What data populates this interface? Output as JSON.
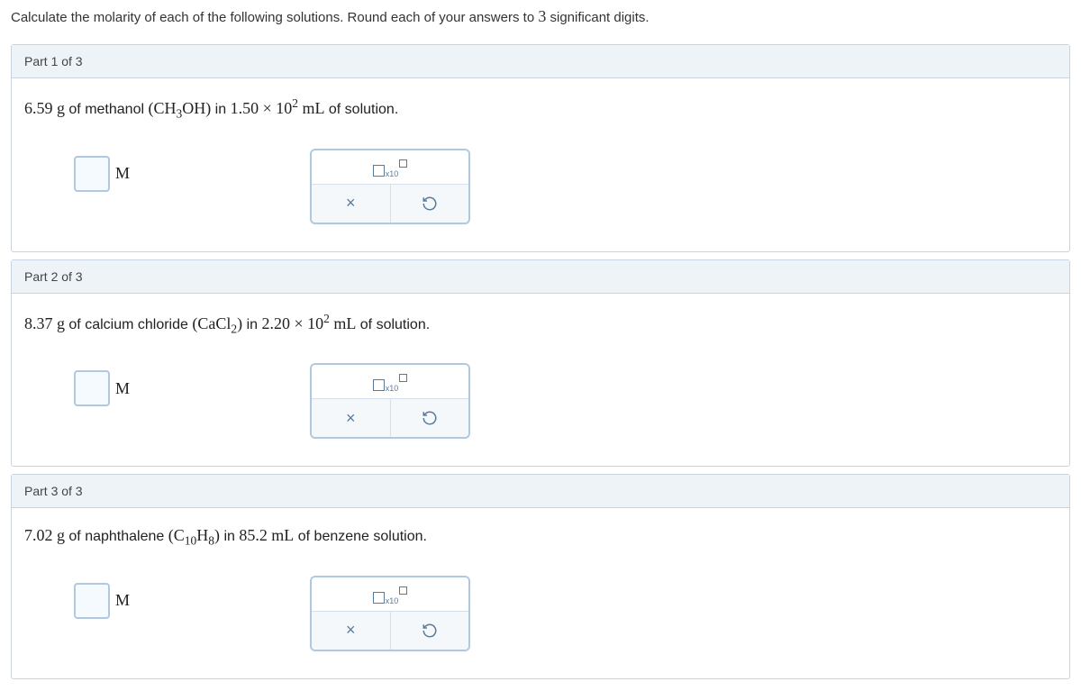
{
  "instructions": {
    "text_before": "Calculate the molarity of each of the following solutions. Round each of your answers to ",
    "sig_digits": "3",
    "text_after": " significant digits."
  },
  "parts": [
    {
      "header": "Part 1 of 3",
      "mass": "6.59",
      "mass_unit": "g",
      "substance_name": "of methanol",
      "formula_html": "(CH<sub>3</sub>OH)",
      "connector": "in",
      "volume_html": "1.50 × 10<sup>2</sup>",
      "volume_unit": "mL",
      "solution_text": "of solution.",
      "unit": "M"
    },
    {
      "header": "Part 2 of 3",
      "mass": "8.37",
      "mass_unit": "g",
      "substance_name": "of calcium chloride",
      "formula_html": "(CaCl<sub>2</sub>)",
      "connector": "in",
      "volume_html": "2.20 × 10<sup>2</sup>",
      "volume_unit": "mL",
      "solution_text": "of solution.",
      "unit": "M"
    },
    {
      "header": "Part 3 of 3",
      "mass": "7.02",
      "mass_unit": "g",
      "substance_name": "of naphthalene",
      "formula_html": "(C<sub>10</sub>H<sub>8</sub>)",
      "connector": "in",
      "volume_html": "85.2",
      "volume_unit": "mL",
      "solution_text": "of benzene solution.",
      "unit": "M"
    }
  ],
  "toolbox": {
    "sci_notation_sub": "x10",
    "clear_symbol": "×",
    "reset_symbol": "↺"
  },
  "colors": {
    "border": "#c8d4e0",
    "header_bg": "#eef3f7",
    "input_border": "#b0c8e0",
    "input_bg": "#f5faff",
    "tool_color": "#5a7a9a",
    "tool_bg": "#f4f8fb"
  }
}
